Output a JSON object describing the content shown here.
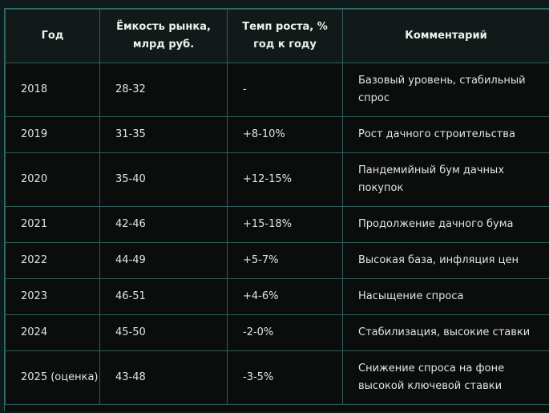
{
  "table": {
    "headers": [
      "Год",
      "Ёмкость рынка, млрд руб.",
      "Темп роста, % год к году",
      "Комментарий"
    ],
    "rows": [
      {
        "year": "2018",
        "capacity": "28-32",
        "growth": "-",
        "comment": "Базовый уровень, стабильный спрос"
      },
      {
        "year": "2019",
        "capacity": "31-35",
        "growth": "+8-10%",
        "comment": "Рост дачного строительства"
      },
      {
        "year": "2020",
        "capacity": "35-40",
        "growth": "+12-15%",
        "comment": "Пандемийный бум дачных покупок"
      },
      {
        "year": "2021",
        "capacity": "42-46",
        "growth": "+15-18%",
        "comment": "Продолжение дачного бума"
      },
      {
        "year": "2022",
        "capacity": "44-49",
        "growth": "+5-7%",
        "comment": "Высокая база, инфляция цен"
      },
      {
        "year": "2023",
        "capacity": "46-51",
        "growth": "+4-6%",
        "comment": "Насыщение спроса"
      },
      {
        "year": "2024",
        "capacity": "45-50",
        "growth": "-2-0%",
        "comment": "Стабилизация, высокие ставки"
      },
      {
        "year": "2025 (оценка)",
        "capacity": "43-48",
        "growth": "-3-5%",
        "comment": "Снижение спроса на фоне высокой ключевой ставки"
      }
    ]
  }
}
